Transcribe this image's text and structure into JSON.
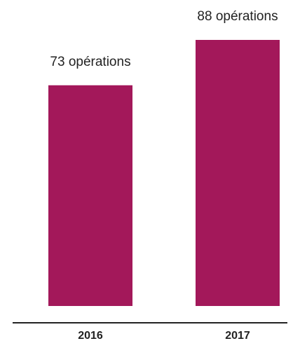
{
  "chart_data": {
    "type": "bar",
    "categories": [
      "2016",
      "2017"
    ],
    "values": [
      73,
      88
    ],
    "data_labels": [
      "73 opérations",
      "88 opérations"
    ],
    "title": "",
    "xlabel": "",
    "ylabel": "",
    "ylim": [
      0,
      88
    ],
    "grid": false,
    "legend": "none",
    "colors": {
      "bar": "#A3185A",
      "axis": "#222222",
      "text": "#222222"
    }
  }
}
